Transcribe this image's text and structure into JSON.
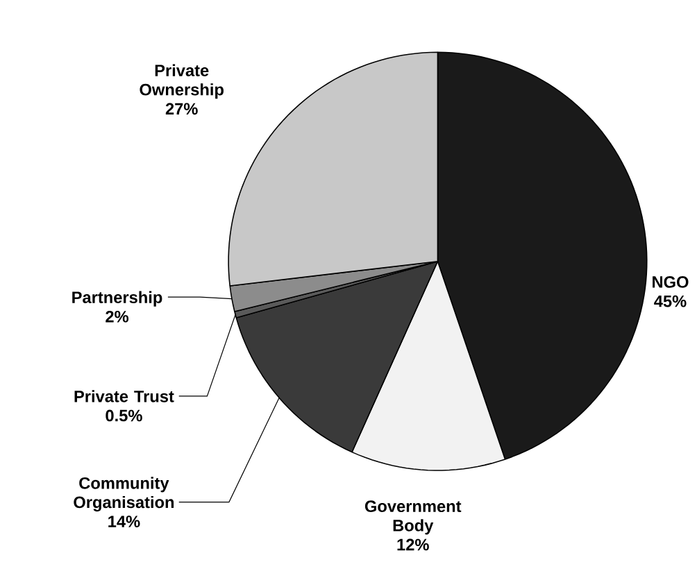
{
  "chart_data": {
    "type": "pie",
    "categories": [
      "NGO",
      "Government Body",
      "Community Organisation",
      "Private Trust",
      "Partnership",
      "Private Ownership"
    ],
    "values": [
      45,
      12,
      14,
      0.5,
      2,
      27
    ],
    "value_labels": [
      "45%",
      "12%",
      "14%",
      "0.5%",
      "2%",
      "27%"
    ],
    "colors": [
      "#1a1a1a",
      "#f2f2f2",
      "#3a3a3a",
      "#5a5a5a",
      "#8c8c8c",
      "#c8c8c8"
    ]
  }
}
